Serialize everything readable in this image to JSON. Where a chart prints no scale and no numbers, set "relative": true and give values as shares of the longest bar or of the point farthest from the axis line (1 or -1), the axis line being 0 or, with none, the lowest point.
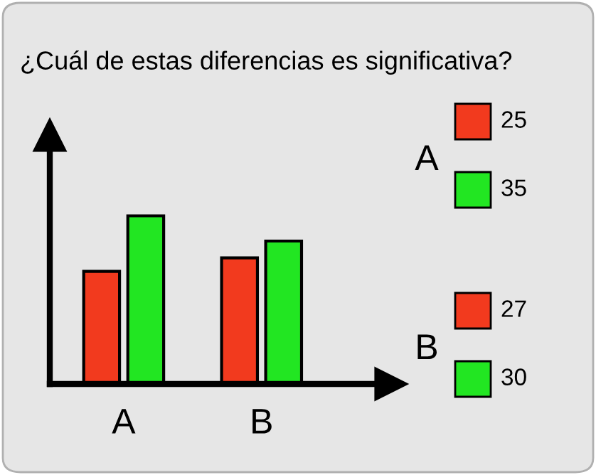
{
  "chart_data": [
    {
      "type": "bar",
      "title": "¿Cuál de estas diferencias es significativa?",
      "categories": [
        "A",
        "B"
      ],
      "relative": true,
      "series": [
        {
          "color": "#f23a1e",
          "values": [
            0.67,
            0.75
          ]
        },
        {
          "color": "#22e622",
          "values": [
            1,
            0.85
          ]
        }
      ]
    },
    {
      "type": "other",
      "categories": [
        "A",
        "B"
      ],
      "data_labels": true,
      "series": [
        {
          "color": "#f23a1e",
          "values": [
            25,
            27
          ]
        },
        {
          "color": "#22e622",
          "values": [
            35,
            30
          ]
        }
      ]
    }
  ]
}
